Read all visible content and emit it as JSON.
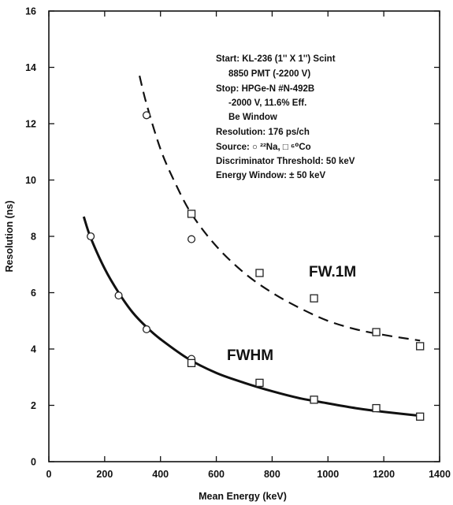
{
  "chart_data": {
    "type": "scatter",
    "xlabel": "Mean Energy (keV)",
    "ylabel": "Resolution (ns)",
    "xlim": [
      0,
      1400
    ],
    "ylim": [
      0,
      16
    ],
    "x_ticks": [
      0,
      200,
      400,
      600,
      800,
      1000,
      1200,
      1400
    ],
    "y_ticks": [
      0,
      2,
      4,
      6,
      8,
      10,
      12,
      14,
      16
    ],
    "grid": false,
    "annotation": {
      "lines": [
        "Start: KL-236 (1'' X 1'') Scint",
        "8850 PMT (-2200 V)",
        "Stop: HPGe-N #N-492B",
        "-2000 V, 11.6% Eff.",
        "Be Window",
        "Resolution: 176 ps/ch",
        "Source:  ○ ²²Na,  □ ⁶⁰Co",
        "Discriminator Threshold: 50 keV",
        "Energy Window: ± 50 keV"
      ]
    },
    "series": [
      {
        "name": "FW.1M",
        "line_style": "dashed",
        "points": [
          {
            "x": 350,
            "y": 12.3,
            "marker": "circle"
          },
          {
            "x": 511,
            "y": 7.9,
            "marker": "circle"
          },
          {
            "x": 511,
            "y": 8.8,
            "marker": "square"
          },
          {
            "x": 755,
            "y": 6.7,
            "marker": "square"
          },
          {
            "x": 950,
            "y": 5.8,
            "marker": "square"
          },
          {
            "x": 1173,
            "y": 4.6,
            "marker": "square"
          },
          {
            "x": 1330,
            "y": 4.1,
            "marker": "square"
          }
        ],
        "fit_curve": [
          [
            325,
            13.7
          ],
          [
            350,
            12.7
          ],
          [
            400,
            11.1
          ],
          [
            450,
            9.95
          ],
          [
            511,
            8.8
          ],
          [
            600,
            7.65
          ],
          [
            700,
            6.7
          ],
          [
            800,
            6.0
          ],
          [
            900,
            5.45
          ],
          [
            1000,
            5.0
          ],
          [
            1100,
            4.7
          ],
          [
            1200,
            4.5
          ],
          [
            1330,
            4.3
          ]
        ]
      },
      {
        "name": "FWHM",
        "line_style": "solid",
        "points": [
          {
            "x": 150,
            "y": 8.0,
            "marker": "circle"
          },
          {
            "x": 250,
            "y": 5.9,
            "marker": "circle"
          },
          {
            "x": 350,
            "y": 4.7,
            "marker": "circle"
          },
          {
            "x": 511,
            "y": 3.65,
            "marker": "circle"
          },
          {
            "x": 511,
            "y": 3.5,
            "marker": "square"
          },
          {
            "x": 755,
            "y": 2.8,
            "marker": "square"
          },
          {
            "x": 950,
            "y": 2.2,
            "marker": "square"
          },
          {
            "x": 1173,
            "y": 1.9,
            "marker": "square"
          },
          {
            "x": 1330,
            "y": 1.6,
            "marker": "square"
          }
        ],
        "fit_curve": [
          [
            125,
            8.7
          ],
          [
            150,
            7.95
          ],
          [
            200,
            6.85
          ],
          [
            250,
            6.0
          ],
          [
            300,
            5.3
          ],
          [
            350,
            4.78
          ],
          [
            400,
            4.35
          ],
          [
            500,
            3.65
          ],
          [
            600,
            3.15
          ],
          [
            700,
            2.8
          ],
          [
            800,
            2.5
          ],
          [
            900,
            2.25
          ],
          [
            1000,
            2.07
          ],
          [
            1100,
            1.9
          ],
          [
            1200,
            1.77
          ],
          [
            1340,
            1.62
          ]
        ]
      }
    ]
  }
}
